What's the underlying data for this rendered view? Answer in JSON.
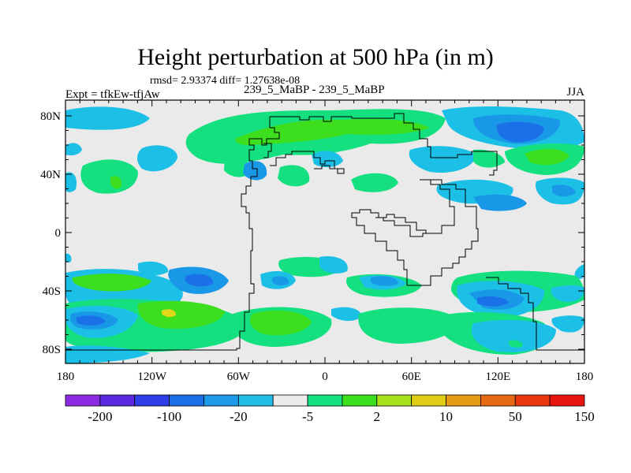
{
  "figure": {
    "title": "Height perturbation at 500 hPa (in m)",
    "stats_line": "rmsd= 2.93374 diff= 1.27638e-08",
    "left_label": "Expt = tfkEw-tfjAw",
    "center_label": "239_5_MaBP - 239_5_MaBP",
    "right_label": "JJA"
  },
  "axes": {
    "lon_ticks": [
      "180",
      "120W",
      "60W",
      "0",
      "60E",
      "120E",
      "180"
    ],
    "lat_ticks": [
      "80N",
      "40N",
      "0",
      "40S",
      "80S"
    ]
  },
  "colorbar": {
    "colors": [
      "#8a2be2",
      "#5b28e0",
      "#2f3ee6",
      "#1a6fe6",
      "#1e98e8",
      "#22bde6",
      "#eaeaea",
      "#14e080",
      "#3cde1e",
      "#a8e01a",
      "#e0cc14",
      "#e29a14",
      "#e66a14",
      "#e8380f",
      "#e81410"
    ],
    "labels": [
      "-200",
      "-100",
      "-20",
      "-5",
      "2",
      "10",
      "50",
      "150"
    ]
  },
  "map_legend_colors": {
    "background": "#eaeaea",
    "light_blue": "#1cc0e6",
    "mid_blue": "#1a98e8",
    "deep_blue": "#1a70e6",
    "green": "#14e080",
    "light_green": "#3cde1e",
    "yellow": "#e0d818",
    "coastline": "#000000"
  }
}
